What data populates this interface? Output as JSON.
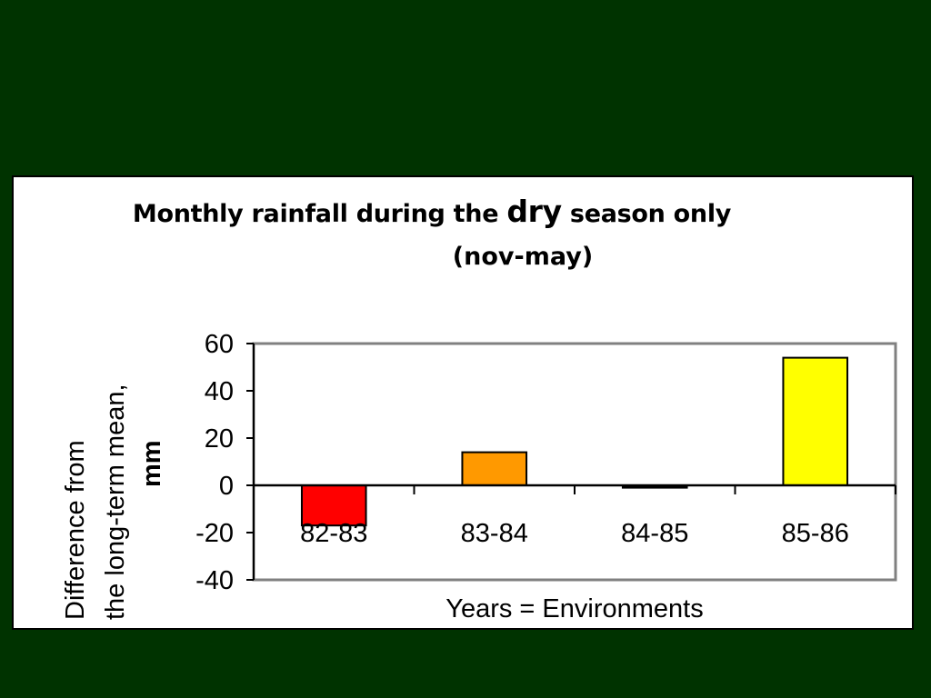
{
  "chart_data": {
    "type": "bar",
    "title_part1": "Monthly rainfall during the ",
    "title_emphasis": "dry",
    "title_part2": " season only",
    "subtitle": "(nov-may)",
    "ylabel_line1": "Difference from",
    "ylabel_line2": "the long-term mean,",
    "ylabel_line3": "mm",
    "xlabel": "Years = Environments",
    "categories": [
      "82-83",
      "83-84",
      "84-85",
      "85-86"
    ],
    "values": [
      -17,
      14,
      -1,
      54
    ],
    "colors": [
      "#ff0000",
      "#ff9900",
      "#000000",
      "#ffff00"
    ],
    "ylim": [
      -40,
      60
    ],
    "yticks": [
      60,
      40,
      20,
      0,
      -20,
      -40
    ],
    "grid": false,
    "legend": "none"
  }
}
